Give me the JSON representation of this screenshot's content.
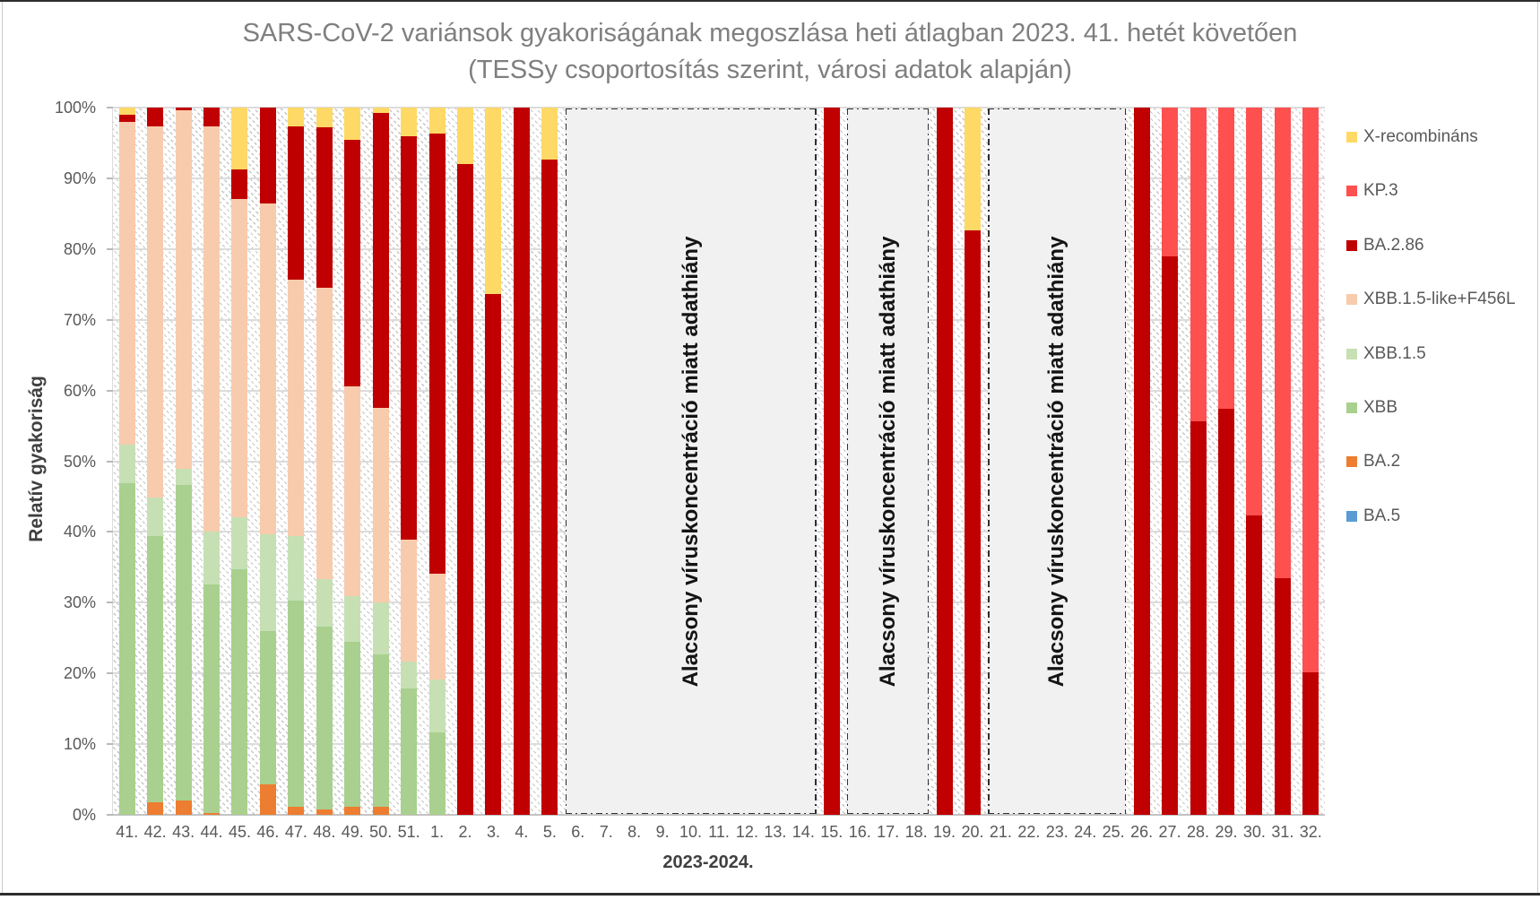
{
  "chart_data": {
    "type": "bar",
    "variant": "stacked-100-percent",
    "title_line1": "SARS-CoV-2 variánsok gyakoriságának megoszlása heti átlagban 2023. 41. hetét követően",
    "title_line2": "(TESSy csoportosítás szerint, városi adatok alapján)",
    "ylabel": "Relatív gyakoriság",
    "xlabel": "2023-2024.",
    "ylim": [
      0,
      100
    ],
    "grid": "horizontal",
    "legend_position": "right",
    "yticks": [
      "0%",
      "10%",
      "20%",
      "30%",
      "40%",
      "50%",
      "60%",
      "70%",
      "80%",
      "90%",
      "100%"
    ],
    "categories": [
      "41.",
      "42.",
      "43.",
      "44.",
      "45.",
      "46.",
      "47.",
      "48.",
      "49.",
      "50.",
      "51.",
      "1.",
      "2.",
      "3.",
      "4.",
      "5.",
      "6.",
      "7.",
      "8.",
      "9.",
      "10.",
      "11.",
      "12.",
      "13.",
      "14.",
      "15.",
      "16.",
      "17.",
      "18.",
      "19.",
      "20.",
      "21.",
      "22.",
      "23.",
      "24.",
      "25.",
      "26.",
      "27.",
      "28.",
      "29.",
      "30.",
      "31.",
      "32."
    ],
    "series": [
      {
        "name": "BA.5",
        "color": "#5B9BD5",
        "values": [
          0,
          0,
          0,
          0,
          0,
          0,
          0,
          0,
          0,
          0,
          0,
          0,
          0,
          0,
          0,
          0,
          null,
          null,
          null,
          null,
          null,
          null,
          null,
          null,
          null,
          0,
          null,
          null,
          null,
          0,
          0,
          null,
          null,
          null,
          null,
          null,
          0,
          0,
          0,
          0,
          0,
          0,
          0
        ]
      },
      {
        "name": "BA.2",
        "color": "#ED7D31",
        "values": [
          0,
          1.8,
          2.0,
          0.3,
          0,
          4.3,
          1.1,
          0.8,
          1.2,
          1.1,
          0,
          0,
          0,
          0,
          0,
          0,
          null,
          null,
          null,
          null,
          null,
          null,
          null,
          null,
          null,
          0,
          null,
          null,
          null,
          0,
          0,
          null,
          null,
          null,
          null,
          null,
          0,
          0,
          0,
          0,
          0,
          0,
          0
        ]
      },
      {
        "name": "XBB",
        "color": "#A9D08E",
        "values": [
          46.9,
          37.6,
          44.6,
          32.3,
          34.7,
          21.7,
          29.2,
          25.8,
          23.3,
          21.6,
          17.9,
          11.7,
          0,
          0,
          0,
          0,
          null,
          null,
          null,
          null,
          null,
          null,
          null,
          null,
          null,
          0,
          null,
          null,
          null,
          0,
          0,
          null,
          null,
          null,
          null,
          null,
          0,
          0,
          0,
          0,
          0,
          0,
          0
        ]
      },
      {
        "name": "XBB.1.5",
        "color": "#C6E0B4",
        "values": [
          5.5,
          5.5,
          2.3,
          7.4,
          7.4,
          13.7,
          9.1,
          6.7,
          6.4,
          7.4,
          3.8,
          7.4,
          0,
          0,
          0,
          0,
          null,
          null,
          null,
          null,
          null,
          null,
          null,
          null,
          null,
          0,
          null,
          null,
          null,
          0,
          0,
          null,
          null,
          null,
          null,
          null,
          0,
          0,
          0,
          0,
          0,
          0,
          0
        ]
      },
      {
        "name": "XBB.1.5-like+F456L",
        "color": "#F8CBAD",
        "values": [
          45.6,
          52.5,
          50.7,
          57.4,
          45.0,
          46.8,
          36.3,
          41.2,
          29.7,
          27.4,
          17.2,
          15.0,
          0,
          0,
          0,
          0,
          null,
          null,
          null,
          null,
          null,
          null,
          null,
          null,
          null,
          0,
          null,
          null,
          null,
          0,
          0,
          null,
          null,
          null,
          null,
          null,
          0,
          0,
          0,
          0,
          0,
          0,
          0
        ]
      },
      {
        "name": "BA.2.86",
        "color": "#C00000",
        "values": [
          1.0,
          2.6,
          0.4,
          2.6,
          4.2,
          13.5,
          21.7,
          22.7,
          34.9,
          41.7,
          57.0,
          62.2,
          92.0,
          73.6,
          100,
          92.7,
          null,
          null,
          null,
          null,
          null,
          null,
          null,
          null,
          null,
          100,
          null,
          null,
          null,
          100,
          82.6,
          null,
          null,
          null,
          null,
          null,
          100,
          78.9,
          55.6,
          57.4,
          42.3,
          33.4,
          20.2
        ]
      },
      {
        "name": "KP.3",
        "color": "#FF5050",
        "values": [
          0,
          0,
          0,
          0,
          0,
          0,
          0,
          0,
          0,
          0,
          0,
          0,
          0,
          0,
          0,
          0,
          null,
          null,
          null,
          null,
          null,
          null,
          null,
          null,
          null,
          0,
          null,
          null,
          null,
          0,
          0,
          null,
          null,
          null,
          null,
          null,
          0,
          21.1,
          44.4,
          42.6,
          57.7,
          66.6,
          79.8
        ]
      },
      {
        "name": "X-recombináns",
        "color": "#FFD965",
        "values": [
          1.0,
          0,
          0,
          0,
          8.7,
          0,
          2.6,
          2.8,
          4.5,
          0.8,
          4.1,
          3.7,
          8.0,
          26.4,
          0,
          7.3,
          null,
          null,
          null,
          null,
          null,
          null,
          null,
          null,
          null,
          0,
          null,
          null,
          null,
          0,
          17.4,
          null,
          null,
          null,
          null,
          null,
          0,
          0,
          0,
          0,
          0,
          0,
          0
        ]
      }
    ],
    "legend_order": [
      "X-recombináns",
      "KP.3",
      "BA.2.86",
      "XBB.1.5-like+F456L",
      "XBB.1.5",
      "XBB",
      "BA.2",
      "BA.5"
    ],
    "no_data_regions": [
      {
        "from_category": "6.",
        "to_category": "14.",
        "start_index": 16,
        "end_index": 24,
        "label": "Alacsony víruskoncentráció miatt adathiány"
      },
      {
        "from_category": "16.",
        "to_category": "18.",
        "start_index": 26,
        "end_index": 28,
        "label": "Alacsony víruskoncentráció miatt adathiány"
      },
      {
        "from_category": "21.",
        "to_category": "25.",
        "start_index": 31,
        "end_index": 35,
        "label": "Alacsony víruskoncentráció miatt adathiány"
      }
    ],
    "no_data_fill": "#f1f1f1"
  }
}
